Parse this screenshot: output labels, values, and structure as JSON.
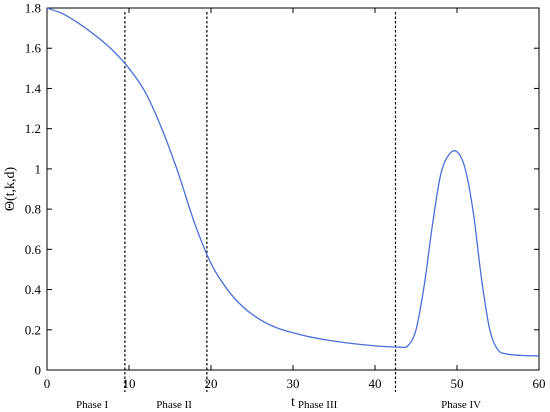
{
  "chart_data": {
    "type": "line",
    "title": "",
    "xlabel": "t",
    "ylabel": "Θ(t,k,d)",
    "xlim": [
      0,
      60
    ],
    "ylim": [
      0,
      1.8
    ],
    "xticks": [
      0,
      10,
      20,
      30,
      40,
      50,
      60
    ],
    "yticks": [
      0,
      0.2,
      0.4,
      0.6,
      0.8,
      1,
      1.2,
      1.4,
      1.6,
      1.8
    ],
    "xtick_labels": [
      "0",
      "10",
      "20",
      "30",
      "40",
      "50",
      "60"
    ],
    "ytick_labels": [
      "0",
      "0.2",
      "0.4",
      "0.6",
      "0.8",
      "1",
      "1.2",
      "1.4",
      "1.6",
      "1.8"
    ],
    "grid": false,
    "series": [
      {
        "color": "#4a6fd6",
        "x": [
          0,
          2,
          4,
          6,
          8,
          10,
          12,
          14,
          16,
          18,
          20,
          22,
          24,
          26,
          28,
          30,
          32,
          34,
          36,
          38,
          40,
          41,
          42,
          43,
          44,
          45,
          46,
          47,
          48,
          49,
          50,
          51,
          52,
          53,
          54,
          55,
          56,
          57,
          58,
          59,
          60
        ],
        "y": [
          1.8,
          1.77,
          1.72,
          1.66,
          1.59,
          1.5,
          1.38,
          1.2,
          0.98,
          0.73,
          0.53,
          0.4,
          0.31,
          0.25,
          0.21,
          0.185,
          0.165,
          0.15,
          0.138,
          0.128,
          0.12,
          0.117,
          0.115,
          0.114,
          0.12,
          0.2,
          0.42,
          0.72,
          0.97,
          1.07,
          1.085,
          1.0,
          0.78,
          0.45,
          0.2,
          0.1,
          0.08,
          0.075,
          0.072,
          0.071,
          0.07
        ]
      }
    ],
    "phase_lines": [
      9.5,
      19.5,
      42.5
    ],
    "phases": [
      {
        "label": "Phase I",
        "x": 5.5
      },
      {
        "label": "Phase II",
        "x": 15.5
      },
      {
        "label": "Phase III",
        "x": 33.0
      },
      {
        "label": "Phase IV",
        "x": 50.5
      }
    ]
  }
}
